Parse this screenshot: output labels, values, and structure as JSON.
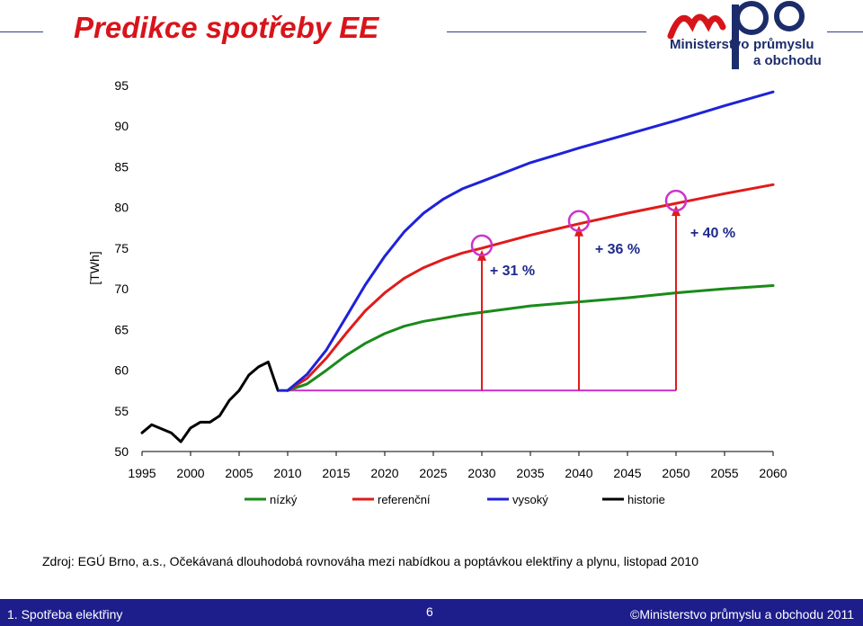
{
  "header": {
    "title": "Predikce spotřeby EE",
    "logo_line1": "Ministerstvo",
    "logo_line2": "průmyslu",
    "logo_line3": "a obchodu"
  },
  "chart_data": {
    "type": "line",
    "ylabel": "[TWh]",
    "xlabel": "",
    "ylim": [
      50,
      95
    ],
    "xlim": [
      1995,
      2060
    ],
    "yticks": [
      50,
      55,
      60,
      65,
      70,
      75,
      80,
      85,
      90,
      95
    ],
    "xticks": [
      1995,
      2000,
      2005,
      2010,
      2015,
      2020,
      2025,
      2030,
      2035,
      2040,
      2045,
      2050,
      2055,
      2060
    ],
    "grid": false,
    "legend_position": "bottom",
    "colors": {
      "nizky": "#1a8a1a",
      "referencni": "#e01b1b",
      "vysoky": "#1f22d8",
      "historie": "#000000",
      "baseline": "#cc33cc"
    },
    "series": [
      {
        "name": "nízký",
        "key": "nizky",
        "x": [
          2010,
          2012,
          2014,
          2016,
          2018,
          2020,
          2022,
          2024,
          2026,
          2028,
          2030,
          2035,
          2040,
          2045,
          2050,
          2055,
          2060
        ],
        "values": [
          57.5,
          58.3,
          60.0,
          61.8,
          63.3,
          64.5,
          65.4,
          66.0,
          66.4,
          66.8,
          67.1,
          67.9,
          68.4,
          68.9,
          69.5,
          70.0,
          70.4
        ]
      },
      {
        "name": "referenční",
        "key": "referencni",
        "x": [
          2010,
          2012,
          2014,
          2016,
          2018,
          2020,
          2022,
          2024,
          2026,
          2028,
          2030,
          2035,
          2040,
          2045,
          2050,
          2055,
          2060
        ],
        "values": [
          57.5,
          59.0,
          61.5,
          64.5,
          67.3,
          69.5,
          71.3,
          72.6,
          73.6,
          74.4,
          75.0,
          76.6,
          78.0,
          79.3,
          80.5,
          81.7,
          82.8
        ]
      },
      {
        "name": "vysoký",
        "key": "vysoky",
        "x": [
          2010,
          2012,
          2014,
          2016,
          2018,
          2020,
          2022,
          2024,
          2026,
          2028,
          2030,
          2035,
          2040,
          2045,
          2050,
          2055,
          2060
        ],
        "values": [
          57.5,
          59.5,
          62.5,
          66.5,
          70.5,
          74.0,
          77.0,
          79.3,
          81.0,
          82.3,
          83.2,
          85.5,
          87.3,
          89.0,
          90.7,
          92.5,
          94.2
        ]
      },
      {
        "name": "historie",
        "key": "historie",
        "x": [
          1995,
          1996,
          1998,
          1999,
          2000,
          2001,
          2002,
          2003,
          2004,
          2005,
          2006,
          2007,
          2008,
          2009
        ],
        "values": [
          52.3,
          53.3,
          52.3,
          51.2,
          52.9,
          53.6,
          53.6,
          54.4,
          56.3,
          57.5,
          59.4,
          60.4,
          61.0,
          57.5
        ]
      }
    ],
    "baseline": {
      "value": 57.5,
      "x_start": 2009,
      "x_end": 2050
    },
    "markers": [
      {
        "x": 2030,
        "y": 75.0,
        "label": "+ 31 %"
      },
      {
        "x": 2040,
        "y": 78.0,
        "label": "+ 36 %"
      },
      {
        "x": 2050,
        "y": 80.5,
        "label": "+ 40 %"
      }
    ]
  },
  "source": "Zdroj: EGÚ Brno, a.s., Očekávaná dlouhodobá rovnováha mezi nabídkou a poptávkou elektřiny a plynu, listopad 2010",
  "footer": {
    "left": "1. Spotřeba elektřiny",
    "page": "6",
    "right": "©Ministerstvo průmyslu a obchodu 2011"
  }
}
